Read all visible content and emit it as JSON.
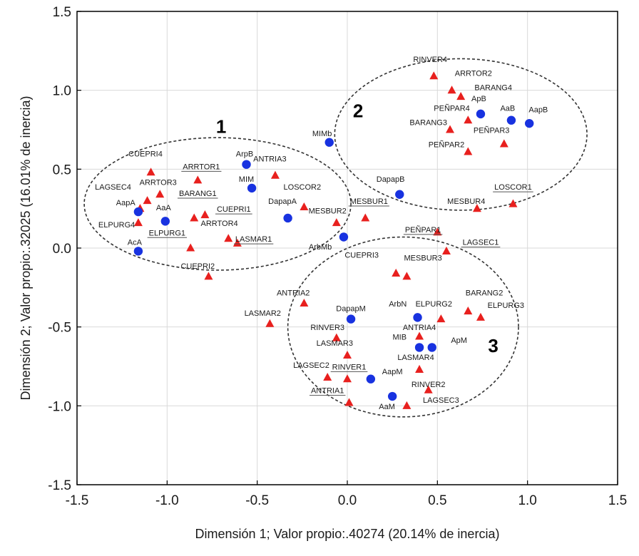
{
  "chart_data": {
    "type": "scatter",
    "xlabel": "Dimensión 1; Valor propio:.40274 (20.14% de inercia)",
    "ylabel": "Dimensión 2; Valor propio:.32025 (16.01% de inercia)",
    "xlim": [
      -1.5,
      1.5
    ],
    "ylim": [
      -1.5,
      1.5
    ],
    "x_ticks": [
      "-1.5",
      "-1.0",
      "-0.5",
      "0.0",
      "0.5",
      "1.0",
      "1.5"
    ],
    "y_ticks": [
      "1.5",
      "1.0",
      "0.5",
      "0.0",
      "-0.5",
      "-1.0",
      "-1.5"
    ],
    "grid": true,
    "colors": {
      "triangle": "#e8201e",
      "circle": "#1832e0",
      "frame": "#000000",
      "grid": "#d9d9d9"
    },
    "clusters": [
      {
        "label": "1",
        "cx": -0.72,
        "cy": 0.28,
        "rx": 0.74,
        "ry": 0.42,
        "label_x": -0.7,
        "label_y": 0.73
      },
      {
        "label": "2",
        "cx": 0.63,
        "cy": 0.72,
        "rx": 0.7,
        "ry": 0.48,
        "label_x": 0.06,
        "label_y": 0.83
      },
      {
        "label": "3",
        "cx": 0.31,
        "cy": -0.5,
        "rx": 0.64,
        "ry": 0.57,
        "label_x": 0.81,
        "label_y": -0.66
      }
    ],
    "series": [
      {
        "name": "triangles",
        "marker": "triangle",
        "points": [
          {
            "label": "RINVER4",
            "x": 0.48,
            "y": 1.09,
            "lx": 0.46,
            "ly": 1.18,
            "underline": false
          },
          {
            "label": "ARRTOR2",
            "x": 0.58,
            "y": 1.0,
            "lx": 0.7,
            "ly": 1.09,
            "underline": false
          },
          {
            "label": "BARANG4",
            "x": 0.63,
            "y": 0.96,
            "lx": 0.81,
            "ly": 1.0,
            "underline": false
          },
          {
            "label": "PEÑPAR4",
            "x": 0.67,
            "y": 0.81,
            "lx": 0.58,
            "ly": 0.87,
            "underline": false
          },
          {
            "label": "BARANG3",
            "x": 0.57,
            "y": 0.75,
            "lx": 0.45,
            "ly": 0.78,
            "underline": false
          },
          {
            "label": "PEÑPAR3",
            "x": 0.87,
            "y": 0.66,
            "lx": 0.8,
            "ly": 0.73,
            "underline": false
          },
          {
            "label": "PEÑPAR2",
            "x": 0.67,
            "y": 0.61,
            "lx": 0.55,
            "ly": 0.64,
            "underline": false
          },
          {
            "label": "ANTRIA3",
            "x": -0.4,
            "y": 0.46,
            "lx": -0.43,
            "ly": 0.55,
            "underline": false
          },
          {
            "label": "CUEPRI4",
            "x": -1.09,
            "y": 0.48,
            "lx": -1.12,
            "ly": 0.58,
            "underline": false
          },
          {
            "label": "ARRTOR1",
            "x": -0.83,
            "y": 0.43,
            "lx": -0.81,
            "ly": 0.5,
            "underline": true
          },
          {
            "label": "ARRTOR3",
            "x": -1.04,
            "y": 0.34,
            "lx": -1.05,
            "ly": 0.4,
            "underline": false
          },
          {
            "label": "LAGSEC4",
            "x": -1.11,
            "y": 0.3,
            "lx": -1.3,
            "ly": 0.37,
            "underline": false
          },
          {
            "label": "BARANG1",
            "x": -0.85,
            "y": 0.19,
            "lx": -0.83,
            "ly": 0.33,
            "underline": true
          },
          {
            "label": "CUEPRI1",
            "x": -0.79,
            "y": 0.21,
            "lx": -0.63,
            "ly": 0.23,
            "underline": true
          },
          {
            "label": "AapA",
            "x": -1.15,
            "y": 0.25,
            "lx": -1.23,
            "ly": 0.27,
            "underline": false
          },
          {
            "label": "ARRTOR4",
            "x": -0.66,
            "y": 0.06,
            "lx": -0.71,
            "ly": 0.14,
            "underline": false
          },
          {
            "label": "ELPURG4",
            "x": -1.16,
            "y": 0.16,
            "lx": -1.28,
            "ly": 0.13,
            "underline": false
          },
          {
            "label": "ELPURG1",
            "x": -0.87,
            "y": 0.0,
            "lx": -1.0,
            "ly": 0.08,
            "underline": true
          },
          {
            "label": "LASMAR1",
            "x": -0.61,
            "y": 0.03,
            "lx": -0.52,
            "ly": 0.04,
            "underline": true
          },
          {
            "label": "CUEPRI2",
            "x": -0.77,
            "y": -0.18,
            "lx": -0.83,
            "ly": -0.13,
            "underline": false
          },
          {
            "label": "LOSCOR2",
            "x": -0.24,
            "y": 0.26,
            "lx": -0.25,
            "ly": 0.37,
            "underline": false
          },
          {
            "label": "MESBUR2",
            "x": -0.06,
            "y": 0.16,
            "lx": -0.11,
            "ly": 0.22,
            "underline": false
          },
          {
            "label": "MESBUR1",
            "x": 0.1,
            "y": 0.19,
            "lx": 0.12,
            "ly": 0.28,
            "underline": true
          },
          {
            "label": "LOSCOR1",
            "x": 0.92,
            "y": 0.28,
            "lx": 0.92,
            "ly": 0.37,
            "underline": true
          },
          {
            "label": "MESBUR4",
            "x": 0.72,
            "y": 0.25,
            "lx": 0.66,
            "ly": 0.28,
            "underline": false
          },
          {
            "label": "PEÑPAR1",
            "x": 0.5,
            "y": 0.1,
            "lx": 0.42,
            "ly": 0.1,
            "underline": true
          },
          {
            "label": "LAGSEC1",
            "x": 0.55,
            "y": -0.02,
            "lx": 0.74,
            "ly": 0.02,
            "underline": true
          },
          {
            "label": "CUEPRI3",
            "x": 0.27,
            "y": -0.16,
            "lx": 0.08,
            "ly": -0.06,
            "underline": false
          },
          {
            "label": "MESBUR3",
            "x": 0.33,
            "y": -0.18,
            "lx": 0.42,
            "ly": -0.08,
            "underline": false
          },
          {
            "label": "ANTRIA2",
            "x": -0.24,
            "y": -0.35,
            "lx": -0.3,
            "ly": -0.3,
            "underline": false
          },
          {
            "label": "BARANG2",
            "x": 0.67,
            "y": -0.4,
            "lx": 0.76,
            "ly": -0.3,
            "underline": false
          },
          {
            "label": "ELPURG2",
            "x": 0.52,
            "y": -0.45,
            "lx": 0.48,
            "ly": -0.37,
            "underline": false
          },
          {
            "label": "ELPURG3",
            "x": 0.74,
            "y": -0.44,
            "lx": 0.88,
            "ly": -0.38,
            "underline": false
          },
          {
            "label": "LASMAR2",
            "x": -0.43,
            "y": -0.48,
            "lx": -0.47,
            "ly": -0.43,
            "underline": false
          },
          {
            "label": "RINVER3",
            "x": -0.06,
            "y": -0.57,
            "lx": -0.11,
            "ly": -0.52,
            "underline": false
          },
          {
            "label": "ANTRIA4",
            "x": 0.4,
            "y": -0.56,
            "lx": 0.4,
            "ly": -0.52,
            "underline": false
          },
          {
            "label": "LASMAR3",
            "x": 0.0,
            "y": -0.68,
            "lx": -0.07,
            "ly": -0.62,
            "underline": false
          },
          {
            "label": "LASMAR4",
            "x": 0.4,
            "y": -0.77,
            "lx": 0.38,
            "ly": -0.71,
            "underline": false
          },
          {
            "label": "LAGSEC2",
            "x": -0.11,
            "y": -0.82,
            "lx": -0.2,
            "ly": -0.76,
            "underline": false
          },
          {
            "label": "RINVER1",
            "x": 0.0,
            "y": -0.83,
            "lx": 0.01,
            "ly": -0.77,
            "underline": true
          },
          {
            "label": "RINVER2",
            "x": 0.45,
            "y": -0.9,
            "lx": 0.45,
            "ly": -0.88,
            "underline": false
          },
          {
            "label": "ANTRIA1",
            "x": 0.01,
            "y": -0.98,
            "lx": -0.11,
            "ly": -0.92,
            "underline": true
          },
          {
            "label": "LAGSEC3",
            "x": 0.33,
            "y": -1.0,
            "lx": 0.52,
            "ly": -0.98,
            "underline": false
          }
        ]
      },
      {
        "name": "circles",
        "marker": "circle",
        "points": [
          {
            "label": "ApB",
            "x": 0.74,
            "y": 0.85,
            "lx": 0.73,
            "ly": 0.93,
            "underline": false
          },
          {
            "label": "AaB",
            "x": 0.91,
            "y": 0.81,
            "lx": 0.89,
            "ly": 0.87,
            "underline": false
          },
          {
            "label": "AapB",
            "x": 1.01,
            "y": 0.79,
            "lx": 1.06,
            "ly": 0.86,
            "underline": false
          },
          {
            "label": "MIMb",
            "x": -0.1,
            "y": 0.67,
            "lx": -0.14,
            "ly": 0.71,
            "underline": false
          },
          {
            "label": "ArpB",
            "x": -0.56,
            "y": 0.53,
            "lx": -0.57,
            "ly": 0.58,
            "underline": false
          },
          {
            "label": "MIM",
            "x": -0.53,
            "y": 0.38,
            "lx": -0.56,
            "ly": 0.42,
            "underline": false
          },
          {
            "label": "DapapB",
            "x": 0.29,
            "y": 0.34,
            "lx": 0.24,
            "ly": 0.42,
            "underline": false
          },
          {
            "label": "DapapA",
            "x": -0.33,
            "y": 0.19,
            "lx": -0.36,
            "ly": 0.28,
            "underline": false
          },
          {
            "label": "AaA",
            "x": -1.01,
            "y": 0.17,
            "lx": -1.02,
            "ly": 0.24,
            "underline": false
          },
          {
            "label": "AapA",
            "x": -1.16,
            "y": 0.23,
            "lx": -1.23,
            "ly": 0.27,
            "underline": false,
            "hide_label": true
          },
          {
            "label": "AcA",
            "x": -1.16,
            "y": -0.02,
            "lx": -1.18,
            "ly": 0.02,
            "underline": false
          },
          {
            "label": "ArbMb",
            "x": -0.02,
            "y": 0.07,
            "lx": -0.15,
            "ly": -0.01,
            "underline": false
          },
          {
            "label": "DapapM",
            "x": 0.02,
            "y": -0.45,
            "lx": 0.02,
            "ly": -0.4,
            "underline": false
          },
          {
            "label": "ArbN",
            "x": 0.39,
            "y": -0.44,
            "lx": 0.28,
            "ly": -0.37,
            "underline": false
          },
          {
            "label": "MIB",
            "x": 0.4,
            "y": -0.63,
            "lx": 0.29,
            "ly": -0.58,
            "underline": false
          },
          {
            "label": "ApM",
            "x": 0.47,
            "y": -0.63,
            "lx": 0.62,
            "ly": -0.6,
            "underline": false
          },
          {
            "label": "AapM",
            "x": 0.13,
            "y": -0.83,
            "lx": 0.25,
            "ly": -0.8,
            "underline": false
          },
          {
            "label": "AaM",
            "x": 0.25,
            "y": -0.94,
            "lx": 0.22,
            "ly": -1.02,
            "underline": false
          }
        ]
      }
    ]
  }
}
